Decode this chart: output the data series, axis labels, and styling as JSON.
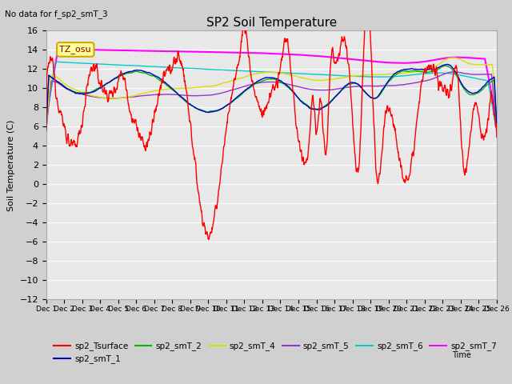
{
  "title": "SP2 Soil Temperature",
  "no_data_text": "No data for f_sp2_smT_3",
  "ylabel": "Soil Temperature (C)",
  "xlabel": "Time",
  "tz_label": "TZ_osu",
  "ylim": [
    -12,
    16
  ],
  "fig_facecolor": "#d0d0d0",
  "ax_facecolor": "#e8e8e8",
  "grid_color": "#ffffff",
  "series": {
    "sp2_Tsurface": {
      "color": "#ff0000",
      "lw": 1.0
    },
    "sp2_smT_1": {
      "color": "#0000cc",
      "lw": 1.0
    },
    "sp2_smT_2": {
      "color": "#00bb00",
      "lw": 1.0
    },
    "sp2_smT_4": {
      "color": "#dddd00",
      "lw": 1.0
    },
    "sp2_smT_5": {
      "color": "#9933cc",
      "lw": 1.0
    },
    "sp2_smT_6": {
      "color": "#00cccc",
      "lw": 1.0
    },
    "sp2_smT_7": {
      "color": "#ff00ff",
      "lw": 1.5
    }
  },
  "legend_order": [
    "sp2_Tsurface",
    "sp2_smT_1",
    "sp2_smT_2",
    "sp2_smT_4",
    "sp2_smT_5",
    "sp2_smT_6",
    "sp2_smT_7"
  ]
}
